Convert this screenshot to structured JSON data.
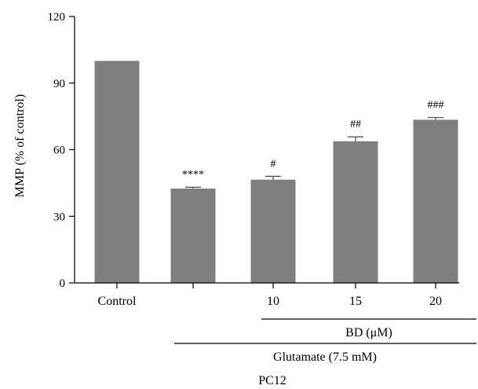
{
  "chart_data": {
    "type": "bar",
    "ylabel": "MMP (% of control)",
    "ylim": [
      0,
      120
    ],
    "yticks": [
      0,
      30,
      60,
      90,
      120
    ],
    "categories": [
      "Control",
      "",
      "10",
      "15",
      "20"
    ],
    "values": [
      100,
      42.5,
      46.5,
      63.8,
      73.5
    ],
    "errors": [
      0,
      0.6,
      1.5,
      2.0,
      1.0
    ],
    "significance": [
      "",
      "****",
      "#",
      "##",
      "###"
    ],
    "bar_color": "#7f7f7f",
    "groupings": [
      {
        "label": "BD (μM)",
        "span": [
          "10",
          "20"
        ]
      },
      {
        "label": "Glutamate (7.5 mM)",
        "span": [
          "",
          "20"
        ]
      },
      {
        "label": "PC12"
      }
    ]
  }
}
